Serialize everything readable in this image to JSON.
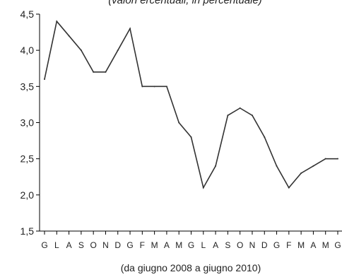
{
  "chart_data": {
    "type": "line",
    "title": "(valori ercentuali, in percentuale)",
    "xlabel": "(da giugno 2008 a giugno 2010)",
    "ylabel": "",
    "ylim": [
      1.5,
      4.5
    ],
    "yticks": [
      "1,5",
      "2,0",
      "2,5",
      "3,0",
      "3,5",
      "4,0",
      "4,5"
    ],
    "ytick_values": [
      1.5,
      2.0,
      2.5,
      3.0,
      3.5,
      4.0,
      4.5
    ],
    "categories": [
      "G",
      "L",
      "A",
      "S",
      "O",
      "N",
      "D",
      "G",
      "F",
      "M",
      "A",
      "M",
      "G",
      "L",
      "A",
      "S",
      "O",
      "N",
      "D",
      "G",
      "F",
      "M",
      "A",
      "M",
      "G"
    ],
    "series": [
      {
        "values": [
          3.6,
          4.4,
          4.2,
          4.0,
          3.7,
          3.7,
          4.0,
          4.3,
          3.5,
          3.5,
          3.5,
          3.0,
          2.8,
          2.1,
          2.4,
          3.1,
          3.2,
          3.1,
          2.8,
          2.4,
          2.1,
          2.3,
          2.4,
          2.5,
          2.5
        ]
      }
    ],
    "grid": false,
    "line_color": "#333333",
    "axis_color": "#000000"
  }
}
